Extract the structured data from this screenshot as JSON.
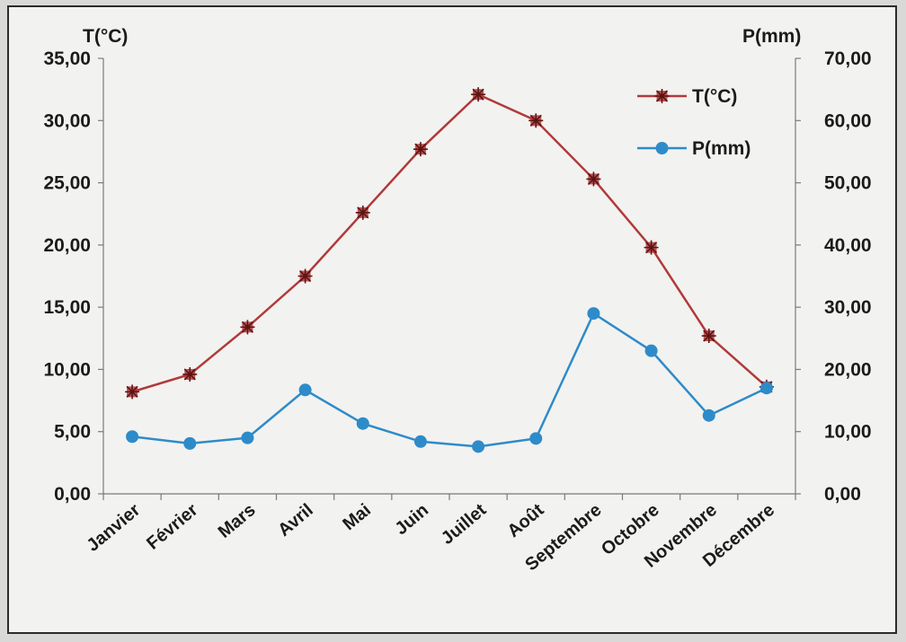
{
  "chart_data": {
    "type": "line",
    "title": "",
    "xlabel": "",
    "categories": [
      "Janvier",
      "Février",
      "Mars",
      "Avril",
      "Mai",
      "Juin",
      "Juillet",
      "Août",
      "Septembre",
      "Octobre",
      "Novembre",
      "Décembre"
    ],
    "y_left": {
      "label": "T(°C)",
      "range": [
        0,
        35
      ],
      "ticks": [
        "0,00",
        "5,00",
        "10,00",
        "15,00",
        "20,00",
        "25,00",
        "30,00",
        "35,00"
      ]
    },
    "y_right": {
      "label": "P(mm)",
      "range": [
        0,
        70
      ],
      "ticks": [
        "0,00",
        "10,00",
        "20,00",
        "30,00",
        "40,00",
        "50,00",
        "60,00",
        "70,00"
      ]
    },
    "series": [
      {
        "name": "T(°C)",
        "axis": "left",
        "color": "#b03a3a",
        "marker": "star",
        "values": [
          8.2,
          9.6,
          13.4,
          17.5,
          22.6,
          27.7,
          32.1,
          30.0,
          25.3,
          19.8,
          12.7,
          8.6
        ]
      },
      {
        "name": "P(mm)",
        "axis": "right",
        "color": "#2e8bc9",
        "marker": "circle",
        "values": [
          9.2,
          8.1,
          9.0,
          16.7,
          11.3,
          8.4,
          7.6,
          8.9,
          29.0,
          23.0,
          12.6,
          17.0
        ]
      }
    ],
    "legend": {
      "position": "top-right"
    },
    "grid": false
  }
}
